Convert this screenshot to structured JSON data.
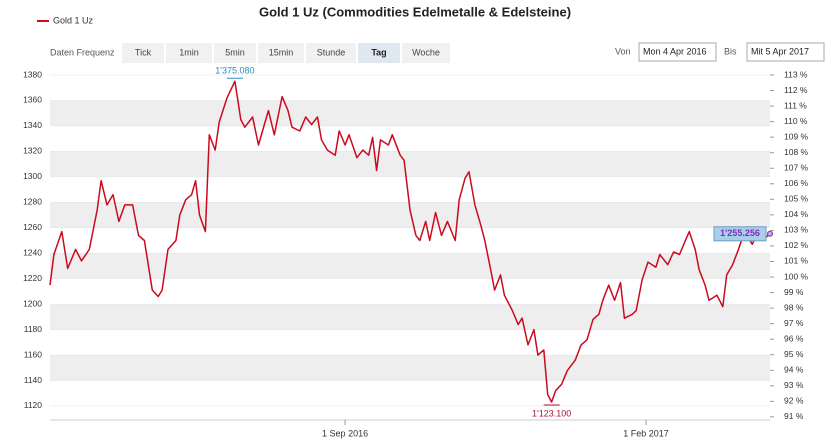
{
  "controls": {
    "label": "Daten Frequenz",
    "buttons": [
      {
        "label": "Tick"
      },
      {
        "label": "1min"
      },
      {
        "label": "5min"
      },
      {
        "label": "15min"
      },
      {
        "label": "Stunde"
      },
      {
        "label": "Tag",
        "active": true
      },
      {
        "label": "Woche"
      }
    ],
    "from_label": "Von",
    "from": "Mon 4 Apr 2016",
    "to_label": "Bis",
    "to": "Mit 5 Apr 2017"
  },
  "chart_data": {
    "type": "line",
    "title": "Gold 1 Uz (Commodities Edelmetalle & Edelsteine)",
    "x": [
      "2016-04-04",
      "2016-04-06",
      "2016-04-10",
      "2016-04-13",
      "2016-04-17",
      "2016-04-20",
      "2016-04-24",
      "2016-04-28",
      "2016-04-30",
      "2016-05-03",
      "2016-05-06",
      "2016-05-09",
      "2016-05-12",
      "2016-05-16",
      "2016-05-19",
      "2016-05-22",
      "2016-05-26",
      "2016-05-29",
      "2016-05-31",
      "2016-06-03",
      "2016-06-07",
      "2016-06-09",
      "2016-06-12",
      "2016-06-15",
      "2016-06-17",
      "2016-06-19",
      "2016-06-22",
      "2016-06-24",
      "2016-06-27",
      "2016-06-29",
      "2016-07-03",
      "2016-07-07",
      "2016-07-10",
      "2016-07-12",
      "2016-07-16",
      "2016-07-19",
      "2016-07-21",
      "2016-07-24",
      "2016-07-27",
      "2016-07-31",
      "2016-08-03",
      "2016-08-05",
      "2016-08-09",
      "2016-08-12",
      "2016-08-15",
      "2016-08-18",
      "2016-08-20",
      "2016-08-23",
      "2016-08-27",
      "2016-08-29",
      "2016-09-01",
      "2016-09-03",
      "2016-09-07",
      "2016-09-10",
      "2016-09-13",
      "2016-09-15",
      "2016-09-17",
      "2016-09-19",
      "2016-09-23",
      "2016-09-25",
      "2016-09-29",
      "2016-10-01",
      "2016-10-04",
      "2016-10-07",
      "2016-10-09",
      "2016-10-12",
      "2016-10-14",
      "2016-10-17",
      "2016-10-20",
      "2016-10-23",
      "2016-10-27",
      "2016-10-29",
      "2016-11-01",
      "2016-11-03",
      "2016-11-06",
      "2016-11-09",
      "2016-11-11",
      "2016-11-14",
      "2016-11-16",
      "2016-11-19",
      "2016-11-21",
      "2016-11-25",
      "2016-11-28",
      "2016-11-30",
      "2016-12-03",
      "2016-12-06",
      "2016-12-08",
      "2016-12-11",
      "2016-12-13",
      "2016-12-15",
      "2016-12-17",
      "2016-12-20",
      "2016-12-23",
      "2016-12-27",
      "2016-12-30",
      "2017-01-02",
      "2017-01-05",
      "2017-01-08",
      "2017-01-10",
      "2017-01-13",
      "2017-01-16",
      "2017-01-19",
      "2017-01-21",
      "2017-01-25",
      "2017-01-27",
      "2017-01-30",
      "2017-02-02",
      "2017-02-06",
      "2017-02-08",
      "2017-02-12",
      "2017-02-15",
      "2017-02-18",
      "2017-02-21",
      "2017-02-23",
      "2017-02-26",
      "2017-02-28",
      "2017-03-03",
      "2017-03-05",
      "2017-03-09",
      "2017-03-12",
      "2017-03-14",
      "2017-03-17",
      "2017-03-20",
      "2017-03-23",
      "2017-03-27",
      "2017-03-30",
      "2017-04-01",
      "2017-04-05"
    ],
    "series": [
      {
        "name": "Gold 1 Uz",
        "color": "#cc0a1e",
        "values": [
          1215,
          1239,
          1257,
          1228,
          1243,
          1234,
          1243,
          1274,
          1297,
          1278,
          1286,
          1265,
          1278,
          1278,
          1254,
          1250,
          1211,
          1206,
          1211,
          1243,
          1250,
          1270,
          1282,
          1286,
          1297,
          1270,
          1257,
          1333,
          1321,
          1343,
          1362,
          1375.08,
          1345,
          1339,
          1347,
          1325,
          1336,
          1352,
          1333,
          1363,
          1352,
          1339,
          1336,
          1347,
          1341,
          1347,
          1329,
          1321,
          1317,
          1336,
          1325,
          1333,
          1315,
          1321,
          1317,
          1331,
          1305,
          1329,
          1325,
          1333,
          1317,
          1313,
          1274,
          1254,
          1250,
          1265,
          1250,
          1272,
          1254,
          1265,
          1250,
          1282,
          1299,
          1304,
          1278,
          1262,
          1250,
          1227,
          1211,
          1223,
          1207,
          1195,
          1184,
          1189,
          1168,
          1180,
          1160,
          1164,
          1129,
          1123.1,
          1132,
          1137,
          1148,
          1156,
          1168,
          1172,
          1188,
          1192,
          1203,
          1215,
          1203,
          1217,
          1189,
          1192,
          1195,
          1219,
          1233,
          1229,
          1239,
          1231,
          1241,
          1239,
          1250,
          1257,
          1243,
          1227,
          1215,
          1203,
          1207,
          1198,
          1223,
          1231,
          1243,
          1257,
          1247,
          1257,
          1250,
          1255.256
        ]
      }
    ],
    "annotations": [
      {
        "x": "2016-07-07",
        "y": 1375.08,
        "label": "1'375.080",
        "color": "#2a8fbd"
      },
      {
        "x": "2016-12-15",
        "y": 1123.1,
        "label": "1'123.100",
        "color": "#b0103a"
      },
      {
        "x": "2017-04-05",
        "y": 1255.256,
        "label": "1'255.256",
        "color": "#7b2fbf"
      }
    ],
    "xlim": [
      "2016-04-04",
      "2017-04-05"
    ],
    "xticks": [
      {
        "value": "2016-09-01",
        "label": "1 Sep 2016"
      },
      {
        "value": "2017-02-01",
        "label": "1 Feb 2017"
      }
    ],
    "ylim": [
      1109,
      1380
    ],
    "yticks": [
      1120,
      1140,
      1160,
      1180,
      1200,
      1220,
      1240,
      1260,
      1280,
      1300,
      1320,
      1340,
      1360,
      1380
    ],
    "y2lim": [
      90.8,
      113
    ],
    "y2ticks": [
      {
        "value": 91,
        "label": "91 %"
      },
      {
        "value": 92,
        "label": "92 %"
      },
      {
        "value": 93,
        "label": "93 %"
      },
      {
        "value": 94,
        "label": "94 %"
      },
      {
        "value": 95,
        "label": "95 %"
      },
      {
        "value": 96,
        "label": "96 %"
      },
      {
        "value": 97,
        "label": "97 %"
      },
      {
        "value": 98,
        "label": "98 %"
      },
      {
        "value": 99,
        "label": "99 %"
      },
      {
        "value": 100,
        "label": "100 %"
      },
      {
        "value": 101,
        "label": "101 %"
      },
      {
        "value": 102,
        "label": "102 %"
      },
      {
        "value": 103,
        "label": "103 %"
      },
      {
        "value": 104,
        "label": "104 %"
      },
      {
        "value": 105,
        "label": "105 %"
      },
      {
        "value": 106,
        "label": "106 %"
      },
      {
        "value": 107,
        "label": "107 %"
      },
      {
        "value": 108,
        "label": "108 %"
      },
      {
        "value": 109,
        "label": "109 %"
      },
      {
        "value": 110,
        "label": "110 %"
      },
      {
        "value": 111,
        "label": "111 %"
      },
      {
        "value": 112,
        "label": "112 %"
      },
      {
        "value": 113,
        "label": "113 %"
      }
    ],
    "grid": true,
    "legend": "top-left"
  }
}
